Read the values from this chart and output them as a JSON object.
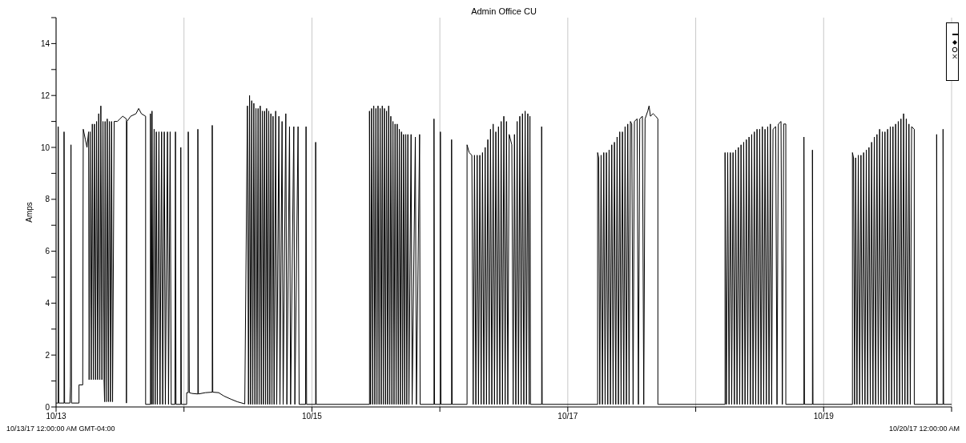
{
  "chart_data": {
    "type": "line",
    "title": "Admin Office CU",
    "ylabel": "Amps",
    "grid": "x",
    "line_style": "solid",
    "annotations": [
      "10/13/17 12:00:00 AM GMT-04:00",
      "10/20/17 12:00:00 AM"
    ],
    "xlim": [
      "--10-13",
      "--10-20"
    ],
    "xticks": [
      {
        "value": "--10-13",
        "label": "10/13"
      },
      {
        "value": "--10-14",
        "label": null
      },
      {
        "value": "--10-15",
        "label": "10/15"
      },
      {
        "value": "--10-16",
        "label": null
      },
      {
        "value": "--10-17",
        "label": "10/17"
      },
      {
        "value": "--10-18",
        "label": null
      },
      {
        "value": "--10-19",
        "label": "10/19"
      },
      {
        "value": "--10-20",
        "label": null
      }
    ],
    "ylim": [
      0,
      15
    ],
    "yticks": [
      0,
      {
        "value": 1,
        "label": null
      },
      2,
      {
        "value": 3,
        "label": null
      },
      4,
      {
        "value": 5,
        "label": null
      },
      6,
      {
        "value": 7,
        "label": null
      },
      8,
      {
        "value": 9,
        "label": null
      },
      10,
      {
        "value": 11,
        "label": null
      },
      12,
      {
        "value": 13,
        "label": null
      },
      14,
      {
        "value": 15,
        "label": null
      }
    ],
    "series": [
      {
        "color": "#000000",
        "x": [
          "--10-13T00:00",
          "--10-13T00:24",
          "--10-13T00:24",
          "--10-13T00:30",
          "--10-13T01:30",
          "--10-13T01:30",
          "--10-13T01:36",
          "--10-13T02:36",
          "--10-13T02:42",
          "--10-13T02:48",
          "--10-13T02:54",
          "--10-13T04:18",
          "--10-13T04:18",
          "--10-13T05:00",
          "--10-13T05:06",
          "--10-13T05:30",
          "--10-13T05:48",
          "--10-13T06:06",
          "--10-13T06:12",
          "--10-13T06:24",
          "--10-13T06:36",
          "--10-13T06:48",
          "--10-13T07:00",
          "--10-13T07:12",
          "--10-13T07:24",
          "--10-13T07:36",
          "--10-13T07:48",
          "--10-13T08:00",
          "--10-13T08:12",
          "--10-13T08:24",
          "--10-13T08:36",
          "--10-13T08:48",
          "--10-13T09:00",
          "--10-13T09:06",
          "--10-13T09:12",
          "--10-13T09:24",
          "--10-13T09:36",
          "--10-13T09:48",
          "--10-13T10:00",
          "--10-13T10:12",
          "--10-13T10:24",
          "--10-13T10:36",
          "--10-13T10:54",
          "--10-13T11:30",
          "--10-13T12:00",
          "--10-13T12:30",
          "--10-13T13:12",
          "--10-13T13:12",
          "--10-13T13:18",
          "--10-13T14:00",
          "--10-13T15:00",
          "--10-13T15:30",
          "--10-13T16:00",
          "--10-13T16:48",
          "--10-13T16:48",
          "--10-13T17:42",
          "--10-13T17:42",
          "--10-13T17:54",
          "--10-13T18:00",
          "--10-13T18:12",
          "--10-13T18:24",
          "--10-13T18:36",
          "--10-13T18:48",
          "--10-13T19:00",
          "--10-13T19:18",
          "--10-13T19:30",
          "--10-13T19:48",
          "--10-13T20:00",
          "--10-13T20:18",
          "--10-13T20:30",
          "--10-13T20:54",
          "--10-13T21:06",
          "--10-13T21:24",
          "--10-13T21:36",
          "--10-13T22:18",
          "--10-13T22:24",
          "--10-13T22:30",
          "--10-13T23:24",
          "--10-13T23:24",
          "--10-13T23:30",
          "--10-14T00:30",
          "--10-14T00:30",
          "--10-14T00:48",
          "--10-14T00:48",
          "--10-14T01:00",
          "--10-14T01:30",
          "--10-14T02:36",
          "--10-14T02:36",
          "--10-14T02:42",
          "--10-14T04:00",
          "--10-14T05:18",
          "--10-14T05:18",
          "--10-14T05:24",
          "--10-14T06:30",
          "--10-14T07:30",
          "--10-14T08:48",
          "--10-14T10:00",
          "--10-14T11:24",
          "--10-14T11:54",
          "--10-14T12:06",
          "--10-14T12:18",
          "--10-14T12:30",
          "--10-14T12:42",
          "--10-14T12:54",
          "--10-14T13:06",
          "--10-14T13:18",
          "--10-14T13:30",
          "--10-14T13:42",
          "--10-14T13:54",
          "--10-14T14:06",
          "--10-14T14:18",
          "--10-14T14:30",
          "--10-14T14:42",
          "--10-14T14:54",
          "--10-14T15:06",
          "--10-14T15:18",
          "--10-14T15:30",
          "--10-14T15:42",
          "--10-14T15:54",
          "--10-14T16:06",
          "--10-14T16:18",
          "--10-14T16:30",
          "--10-14T16:42",
          "--10-14T16:54",
          "--10-14T17:12",
          "--10-14T17:24",
          "--10-14T17:48",
          "--10-14T18:00",
          "--10-14T18:24",
          "--10-14T18:36",
          "--10-14T19:06",
          "--10-14T19:18",
          "--10-14T19:48",
          "--10-14T20:00",
          "--10-14T20:36",
          "--10-14T20:48",
          "--10-14T21:24",
          "--10-14T21:36",
          "--10-14T22:48",
          "--10-14T22:54",
          "--10-14T23:00",
          "--10-15T00:42",
          "--10-15T00:42",
          "--10-15T00:48",
          "--10-15T10:48",
          "--10-15T10:48",
          "--10-15T11:00",
          "--10-15T11:12",
          "--10-15T11:24",
          "--10-15T11:36",
          "--10-15T11:48",
          "--10-15T12:00",
          "--10-15T12:12",
          "--10-15T12:24",
          "--10-15T12:36",
          "--10-15T12:48",
          "--10-15T13:00",
          "--10-15T13:12",
          "--10-15T13:24",
          "--10-15T13:36",
          "--10-15T13:48",
          "--10-15T14:00",
          "--10-15T14:12",
          "--10-15T14:24",
          "--10-15T14:36",
          "--10-15T14:48",
          "--10-15T15:00",
          "--10-15T15:12",
          "--10-15T15:24",
          "--10-15T15:36",
          "--10-15T15:48",
          "--10-15T16:00",
          "--10-15T16:12",
          "--10-15T16:24",
          "--10-15T16:36",
          "--10-15T16:48",
          "--10-15T17:00",
          "--10-15T17:12",
          "--10-15T17:24",
          "--10-15T17:36",
          "--10-15T17:48",
          "--10-15T18:00",
          "--10-15T18:12",
          "--10-15T18:36",
          "--10-15T18:48",
          "--10-15T19:24",
          "--10-15T19:36",
          "--10-15T20:12",
          "--10-15T20:18",
          "--10-15T22:54",
          "--10-15T22:54",
          "--10-15T23:00",
          "--10-16T00:06",
          "--10-16T00:06",
          "--10-16T00:12",
          "--10-16T02:12",
          "--10-16T02:12",
          "--10-16T02:18",
          "--10-16T05:06",
          "--10-16T05:06",
          "--10-16T05:30",
          "--10-16T06:00",
          "--10-16T06:15",
          "--10-16T06:30",
          "--10-16T06:45",
          "--10-16T07:00",
          "--10-16T07:15",
          "--10-16T07:30",
          "--10-16T07:45",
          "--10-16T08:00",
          "--10-16T08:15",
          "--10-16T08:30",
          "--10-16T08:45",
          "--10-16T09:00",
          "--10-16T09:15",
          "--10-16T09:30",
          "--10-16T09:45",
          "--10-16T10:00",
          "--10-16T10:15",
          "--10-16T10:30",
          "--10-16T10:45",
          "--10-16T11:00",
          "--10-16T11:15",
          "--10-16T11:30",
          "--10-16T11:45",
          "--10-16T12:00",
          "--10-16T12:15",
          "--10-16T12:30",
          "--10-16T12:45",
          "--10-16T13:00",
          "--10-16T13:30",
          "--10-16T13:45",
          "--10-16T14:00",
          "--10-16T14:15",
          "--10-16T14:30",
          "--10-16T14:45",
          "--10-16T15:00",
          "--10-16T15:15",
          "--10-16T15:30",
          "--10-16T15:45",
          "--10-16T16:00",
          "--10-16T16:15",
          "--10-16T16:30",
          "--10-16T16:45",
          "--10-16T16:54",
          "--10-16T17:00",
          "--10-16T19:06",
          "--10-16T19:06",
          "--10-16T19:12",
          "--10-17T05:36",
          "--10-17T05:36",
          "--10-17T05:48",
          "--10-17T06:00",
          "--10-17T06:15",
          "--10-17T06:30",
          "--10-17T06:45",
          "--10-17T07:00",
          "--10-17T07:15",
          "--10-17T07:30",
          "--10-17T07:45",
          "--10-17T08:00",
          "--10-17T08:15",
          "--10-17T08:30",
          "--10-17T08:45",
          "--10-17T09:00",
          "--10-17T09:15",
          "--10-17T09:30",
          "--10-17T09:45",
          "--10-17T10:00",
          "--10-17T10:15",
          "--10-17T10:30",
          "--10-17T10:45",
          "--10-17T11:00",
          "--10-17T11:15",
          "--10-17T11:30",
          "--10-17T11:45",
          "--10-17T12:00",
          "--10-17T12:15",
          "--10-17T12:30",
          "--10-17T13:00",
          "--10-17T13:15",
          "--10-17T13:30",
          "--10-17T14:00",
          "--10-17T14:15",
          "--10-17T14:30",
          "--10-17T15:00",
          "--10-17T15:15",
          "--10-17T15:30",
          "--10-17T16:00",
          "--10-17T16:30",
          "--10-17T16:54",
          "--10-17T16:54",
          "--10-18T05:30",
          "--10-18T05:30",
          "--10-18T05:45",
          "--10-18T06:00",
          "--10-18T06:15",
          "--10-18T06:30",
          "--10-18T06:45",
          "--10-18T07:00",
          "--10-18T07:15",
          "--10-18T07:30",
          "--10-18T07:45",
          "--10-18T08:00",
          "--10-18T08:15",
          "--10-18T08:30",
          "--10-18T08:45",
          "--10-18T09:00",
          "--10-18T09:15",
          "--10-18T09:30",
          "--10-18T09:45",
          "--10-18T10:00",
          "--10-18T10:15",
          "--10-18T10:30",
          "--10-18T10:45",
          "--10-18T11:00",
          "--10-18T11:15",
          "--10-18T11:30",
          "--10-18T11:45",
          "--10-18T12:00",
          "--10-18T12:15",
          "--10-18T12:30",
          "--10-18T12:45",
          "--10-18T13:00",
          "--10-18T13:15",
          "--10-18T13:30",
          "--10-18T13:45",
          "--10-18T14:00",
          "--10-18T14:15",
          "--10-18T14:30",
          "--10-18T15:00",
          "--10-18T15:15",
          "--10-18T15:30",
          "--10-18T16:00",
          "--10-18T16:15",
          "--10-18T16:30",
          "--10-18T16:54",
          "--10-18T16:54",
          "--10-18T20:18",
          "--10-18T20:18",
          "--10-18T20:24",
          "--10-18T21:54",
          "--10-18T21:54",
          "--10-18T22:00",
          "--10-19T05:24",
          "--10-19T05:24",
          "--10-19T05:36",
          "--10-19T05:48",
          "--10-19T06:00",
          "--10-19T06:15",
          "--10-19T06:30",
          "--10-19T06:45",
          "--10-19T07:00",
          "--10-19T07:15",
          "--10-19T07:30",
          "--10-19T07:45",
          "--10-19T08:00",
          "--10-19T08:15",
          "--10-19T08:30",
          "--10-19T08:45",
          "--10-19T09:00",
          "--10-19T09:15",
          "--10-19T09:30",
          "--10-19T09:45",
          "--10-19T10:00",
          "--10-19T10:15",
          "--10-19T10:30",
          "--10-19T10:45",
          "--10-19T11:00",
          "--10-19T11:15",
          "--10-19T11:30",
          "--10-19T11:45",
          "--10-19T12:00",
          "--10-19T12:15",
          "--10-19T12:30",
          "--10-19T12:45",
          "--10-19T13:00",
          "--10-19T13:15",
          "--10-19T13:30",
          "--10-19T13:45",
          "--10-19T14:00",
          "--10-19T14:15",
          "--10-19T14:30",
          "--10-19T14:45",
          "--10-19T15:00",
          "--10-19T15:15",
          "--10-19T15:30",
          "--10-19T15:45",
          "--10-19T16:00",
          "--10-19T16:15",
          "--10-19T16:30",
          "--10-19T17:00",
          "--10-19T17:00",
          "--10-19T21:12",
          "--10-19T21:12",
          "--10-19T21:18",
          "--10-19T22:24",
          "--10-19T22:24",
          "--10-19T22:30",
          "--10-20T00:00"
        ],
        "values": [
          0.15,
          0.15,
          10.8,
          0.15,
          0.15,
          10.6,
          0.15,
          0.15,
          0.8,
          10.1,
          0.15,
          0.15,
          0.85,
          0.85,
          10.7,
          10.3,
          10.0,
          10.6,
          1.05,
          10.6,
          1.05,
          10.9,
          1.05,
          10.9,
          1.05,
          11.0,
          1.05,
          11.3,
          1.05,
          11.6,
          1.05,
          11.0,
          1.05,
          0.2,
          11.0,
          0.2,
          11.1,
          0.2,
          11.0,
          0.2,
          11.0,
          0.2,
          11.0,
          11.0,
          11.1,
          11.2,
          11.1,
          0.15,
          11.0,
          11.2,
          11.3,
          11.5,
          11.3,
          11.2,
          0.1,
          0.1,
          11.3,
          0.1,
          11.4,
          0.1,
          10.7,
          0.1,
          10.6,
          0.1,
          10.6,
          0.1,
          10.6,
          0.1,
          10.6,
          0.1,
          10.6,
          0.1,
          10.6,
          0.1,
          0.1,
          10.6,
          0.1,
          0.1,
          10.0,
          0.1,
          0.1,
          0.55,
          0.55,
          10.6,
          0.55,
          0.52,
          0.5,
          10.7,
          0.5,
          0.55,
          0.57,
          10.85,
          0.57,
          0.55,
          0.42,
          0.3,
          0.2,
          0.12,
          11.6,
          0.1,
          12.0,
          0.1,
          11.8,
          0.1,
          11.7,
          0.1,
          11.5,
          0.1,
          11.5,
          0.1,
          11.6,
          0.1,
          11.4,
          0.1,
          11.4,
          0.1,
          11.5,
          0.1,
          11.4,
          0.1,
          11.3,
          0.1,
          11.2,
          0.1,
          11.4,
          0.1,
          11.2,
          0.1,
          11.0,
          0.1,
          11.3,
          0.1,
          10.8,
          0.1,
          10.8,
          0.1,
          10.8,
          0.1,
          0.1,
          10.8,
          0.1,
          0.1,
          10.2,
          0.1,
          0.1,
          11.4,
          0.1,
          11.5,
          0.1,
          11.6,
          0.1,
          11.5,
          0.1,
          11.6,
          0.1,
          11.5,
          0.1,
          11.6,
          0.1,
          11.5,
          0.1,
          11.4,
          0.1,
          11.6,
          0.1,
          11.2,
          0.1,
          11.0,
          0.1,
          10.9,
          0.1,
          10.9,
          0.1,
          10.7,
          0.1,
          10.6,
          0.1,
          10.5,
          0.1,
          10.5,
          0.1,
          10.5,
          0.1,
          10.5,
          0.1,
          10.4,
          0.1,
          10.5,
          0.1,
          0.1,
          11.1,
          0.1,
          0.1,
          10.6,
          0.1,
          0.1,
          10.3,
          0.1,
          0.1,
          10.1,
          9.8,
          9.7,
          0.1,
          9.7,
          0.1,
          9.7,
          0.1,
          9.7,
          0.1,
          9.8,
          0.1,
          10.0,
          0.1,
          10.3,
          0.1,
          10.7,
          0.1,
          10.9,
          0.1,
          10.6,
          0.1,
          10.8,
          0.1,
          11.0,
          0.1,
          11.2,
          0.1,
          11.0,
          0.1,
          10.5,
          10.1,
          0.1,
          10.5,
          0.1,
          11.0,
          0.1,
          11.2,
          0.1,
          11.3,
          0.1,
          11.4,
          0.1,
          11.3,
          0.1,
          11.2,
          0.1,
          0.1,
          10.8,
          0.1,
          0.1,
          9.8,
          9.6,
          0.1,
          9.7,
          0.1,
          9.8,
          0.1,
          9.8,
          0.1,
          9.9,
          0.1,
          10.1,
          0.1,
          10.2,
          0.1,
          10.4,
          0.1,
          10.6,
          0.1,
          10.6,
          0.1,
          10.8,
          0.1,
          10.9,
          0.1,
          11.0,
          10.9,
          0.1,
          11.0,
          11.1,
          0.1,
          11.1,
          11.2,
          0.1,
          11.1,
          11.4,
          11.6,
          11.2,
          11.3,
          11.2,
          11.1,
          0.1,
          0.1,
          9.8,
          0.1,
          9.8,
          0.1,
          9.8,
          0.1,
          9.8,
          0.1,
          9.9,
          0.1,
          10.0,
          0.1,
          10.1,
          0.1,
          10.2,
          0.1,
          10.3,
          0.1,
          10.4,
          0.1,
          10.5,
          0.1,
          10.6,
          0.1,
          10.7,
          0.1,
          10.7,
          0.1,
          10.8,
          0.1,
          10.7,
          0.1,
          10.8,
          0.1,
          10.9,
          0.1,
          10.7,
          10.8,
          0.1,
          10.9,
          11.0,
          0.1,
          10.9,
          10.9,
          0.1,
          0.1,
          10.4,
          0.1,
          0.1,
          9.9,
          0.1,
          0.1,
          9.8,
          9.6,
          0.1,
          9.6,
          0.1,
          9.7,
          0.1,
          9.7,
          0.1,
          9.8,
          0.1,
          9.9,
          0.1,
          10.0,
          0.1,
          10.2,
          0.1,
          10.4,
          0.1,
          10.5,
          0.1,
          10.7,
          0.1,
          10.6,
          0.1,
          10.6,
          0.1,
          10.7,
          0.1,
          10.8,
          0.1,
          10.8,
          0.1,
          10.9,
          0.1,
          11.0,
          0.1,
          11.1,
          0.1,
          11.3,
          0.1,
          11.1,
          0.1,
          10.9,
          0.1,
          10.8,
          10.7,
          0.1,
          0.1,
          10.5,
          0.1,
          0.1,
          10.7,
          0.1,
          0.1
        ]
      }
    ]
  }
}
